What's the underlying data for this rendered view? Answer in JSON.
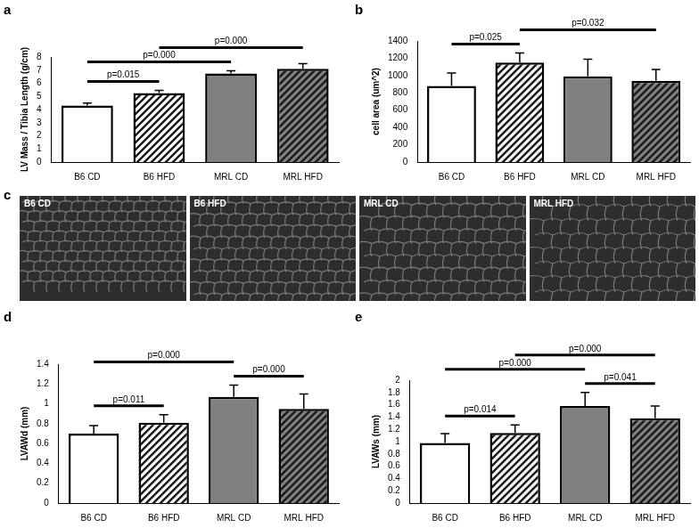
{
  "chart_data": [
    {
      "type": "bar",
      "title": "a",
      "ylabel": "LV Mass / Tibia Length (g/cm)",
      "categories": [
        "B6 CD",
        "B6 HFD",
        "MRL CD",
        "MRL HFD"
      ],
      "values": [
        4.3,
        5.25,
        6.75,
        7.1
      ],
      "errors": [
        0.2,
        0.2,
        0.2,
        0.4
      ],
      "colors": [
        "#ffffff",
        "#ffffff",
        "#808080",
        "#808080"
      ],
      "ylim": [
        0,
        8
      ],
      "yticks": [
        0,
        1,
        2,
        3,
        4,
        5,
        6,
        7,
        8
      ],
      "grid": false,
      "annotations": [
        {
          "text": "p=0.015",
          "from": "B6 CD",
          "to": "B6 HFD"
        },
        {
          "text": "p=0.000",
          "from": "B6 CD",
          "to": "MRL CD"
        },
        {
          "text": "p=0.000",
          "from": "B6 HFD",
          "to": "MRL HFD"
        }
      ]
    },
    {
      "type": "bar",
      "title": "b",
      "ylabel": "cell area (um^2)",
      "categories": [
        "B6 CD",
        "B6 HFD",
        "MRL CD",
        "MRL HFD"
      ],
      "values": [
        880,
        1150,
        990,
        940
      ],
      "errors": [
        150,
        110,
        200,
        130
      ],
      "colors": [
        "#ffffff",
        "#ffffff",
        "#808080",
        "#808080"
      ],
      "ylim": [
        0,
        1400
      ],
      "yticks": [
        0,
        200,
        400,
        600,
        800,
        1000,
        1200,
        1400
      ],
      "grid": false,
      "annotations": [
        {
          "text": "p=0.025",
          "from": "B6 CD",
          "to": "B6 HFD"
        },
        {
          "text": "p=0.032",
          "from": "B6 HFD",
          "to": "MRL HFD"
        }
      ]
    },
    {
      "type": "bar",
      "title": "d",
      "ylabel": "LVAWd (mm)",
      "categories": [
        "B6 CD",
        "B6 HFD",
        "MRL CD",
        "MRL HFD"
      ],
      "values": [
        0.7,
        0.81,
        1.07,
        0.95
      ],
      "errors": [
        0.08,
        0.08,
        0.12,
        0.15
      ],
      "colors": [
        "#ffffff",
        "#ffffff",
        "#808080",
        "#808080"
      ],
      "ylim": [
        0,
        1.4
      ],
      "yticks": [
        0,
        0.2,
        0.4,
        0.6,
        0.8,
        1,
        1.2,
        1.4
      ],
      "grid": false,
      "annotations": [
        {
          "text": "p=0.011",
          "from": "B6 CD",
          "to": "B6 HFD"
        },
        {
          "text": "p=0.000",
          "from": "MRL CD",
          "to": "MRL HFD"
        },
        {
          "text": "p=0.000",
          "from": "B6 CD",
          "to": "MRL CD"
        }
      ]
    },
    {
      "type": "bar",
      "title": "e",
      "ylabel": "LVAWs (mm)",
      "categories": [
        "B6 CD",
        "B6 HFD",
        "MRL CD",
        "MRL HFD"
      ],
      "values": [
        0.98,
        1.14,
        1.58,
        1.38
      ],
      "errors": [
        0.15,
        0.13,
        0.22,
        0.2
      ],
      "colors": [
        "#ffffff",
        "#ffffff",
        "#808080",
        "#808080"
      ],
      "ylim": [
        0,
        2
      ],
      "yticks": [
        0,
        0.2,
        0.4,
        0.6,
        0.8,
        1,
        1.2,
        1.4,
        1.6,
        1.8,
        2
      ],
      "grid": false,
      "annotations": [
        {
          "text": "p=0.014",
          "from": "B6 CD",
          "to": "B6 HFD"
        },
        {
          "text": "p=0.041",
          "from": "MRL CD",
          "to": "MRL HFD"
        },
        {
          "text": "p=0.000",
          "from": "B6 CD",
          "to": "MRL CD"
        },
        {
          "text": "p=0.000",
          "from": "B6 HFD",
          "to": "MRL HFD"
        }
      ]
    }
  ],
  "image_panel": {
    "title": "c",
    "images": [
      "B6 CD",
      "B6 HFD",
      "MRL CD",
      "MRL HFD"
    ]
  }
}
